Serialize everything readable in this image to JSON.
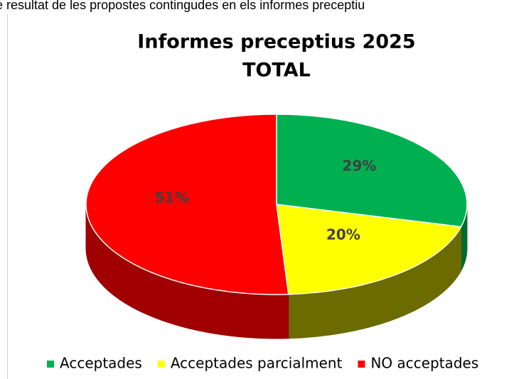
{
  "page": {
    "caption": "e resultat de les propostes contingudes en els informes preceptiu"
  },
  "chart_data": {
    "type": "pie3d",
    "title": [
      "Informes preceptius 2025",
      "TOTAL"
    ],
    "categories": [
      "Acceptades",
      "Acceptades parcialment",
      "NO acceptades"
    ],
    "values": [
      29,
      20,
      51
    ],
    "value_labels": [
      "29%",
      "20%",
      "51%"
    ],
    "colors": [
      "#00b050",
      "#ffff00",
      "#ff0000"
    ],
    "side_colors": [
      "#006b30",
      "#6b6b00",
      "#a00000"
    ],
    "legend": "bottom"
  }
}
